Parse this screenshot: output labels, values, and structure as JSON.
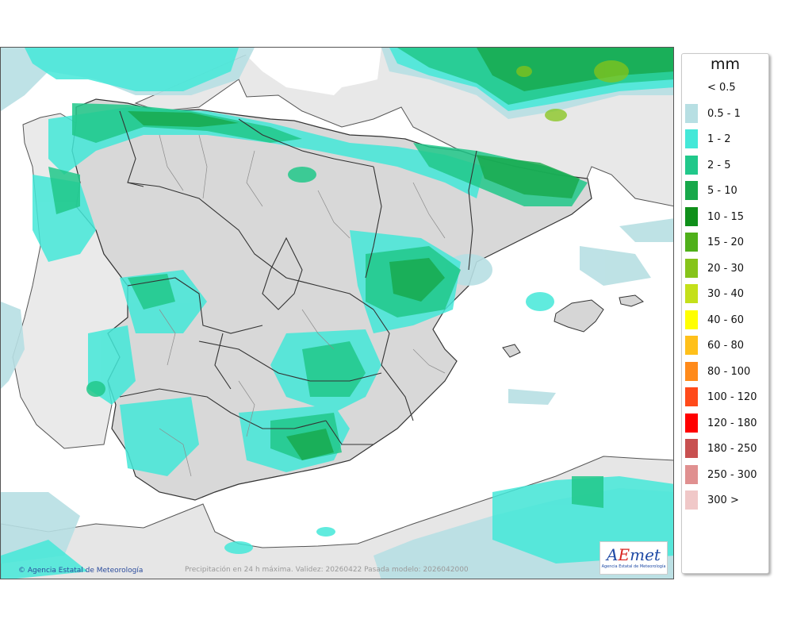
{
  "map": {
    "credit": "Agencia Estatal de Meteorología",
    "caption": "Precipitación en 24 h máxima. Validez: 20260422 Pasada modelo: 2026042000",
    "logo": {
      "main_a": "A",
      "main_e": "E",
      "main_rest": "met",
      "sub": "Agencia Estatal de Meteorología"
    }
  },
  "legend": {
    "unit": "mm",
    "classes": [
      {
        "label": "< 0.5",
        "color": "#ffffff"
      },
      {
        "label": "0.5 - 1",
        "color": "#b7dfe3"
      },
      {
        "label": "1 - 2",
        "color": "#44e8d8"
      },
      {
        "label": "2 - 5",
        "color": "#21c88a"
      },
      {
        "label": "5 - 10",
        "color": "#17a84a"
      },
      {
        "label": "10 - 15",
        "color": "#0f8f1a"
      },
      {
        "label": "15 - 20",
        "color": "#4fb01a"
      },
      {
        "label": "20 - 30",
        "color": "#86c41a"
      },
      {
        "label": "30 - 40",
        "color": "#c4e01a"
      },
      {
        "label": "40 - 60",
        "color": "#ffff00"
      },
      {
        "label": "60 - 80",
        "color": "#ffc01a"
      },
      {
        "label": "80 - 100",
        "color": "#ff8a1a"
      },
      {
        "label": "100 - 120",
        "color": "#ff4a1a"
      },
      {
        "label": "120 - 180",
        "color": "#ff0000"
      },
      {
        "label": "180 - 250",
        "color": "#c85050"
      },
      {
        "label": "250 - 300",
        "color": "#e09090"
      },
      {
        "label": "300 >",
        "color": "#f0c8c8"
      }
    ]
  }
}
